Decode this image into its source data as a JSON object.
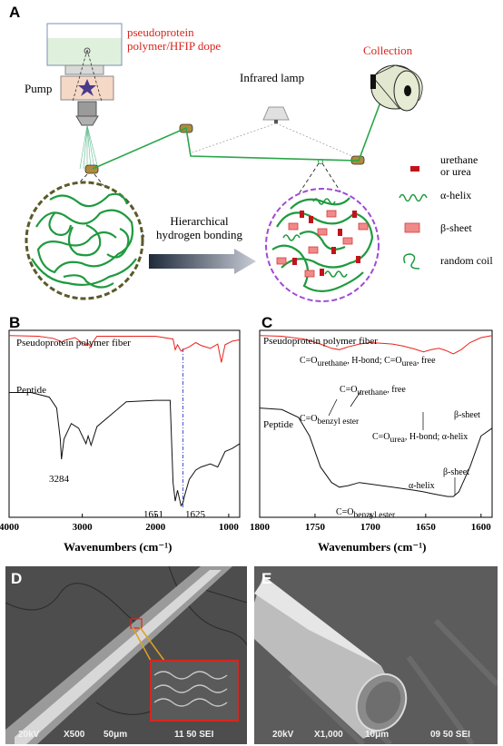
{
  "panels": {
    "A": "A",
    "B": "B",
    "C": "C",
    "D": "D",
    "E": "E"
  },
  "panel_a": {
    "dope_label": "pseudoprotein\npolymer/HFIP dope",
    "pump_label": "Pump",
    "lamp_label": "Infrared lamp",
    "collection_label": "Collection",
    "bonding_label": "Hierarchical\nhydrogen bonding",
    "legend": [
      {
        "label": "urethane\nor urea"
      },
      {
        "label": "α-helix"
      },
      {
        "label": "β-sheet"
      },
      {
        "label": "random coil"
      }
    ],
    "colors": {
      "fiber": "#2aa64a",
      "urethane": "#c0141b",
      "beta": "#e85a5a",
      "text_red": "#d7261e"
    }
  },
  "panel_b": {
    "xlabel": "Wavenumbers (cm⁻¹)",
    "ticks": [
      "4000",
      "3000",
      "2000",
      "1000"
    ],
    "fiber_label": "Pseudoprotein polymer fiber",
    "peptide_label": "Peptide",
    "annotations": [
      "3284",
      "1651",
      "1625"
    ]
  },
  "panel_c": {
    "xlabel": "Wavenumbers (cm⁻¹)",
    "ticks": [
      "1800",
      "1750",
      "1700",
      "1650",
      "1600"
    ],
    "fiber_label": "Pseudoprotein polymer fiber",
    "peptide_label": "Peptide",
    "ann_urethane_hbond": "C=O",
    "ann_urethane_hbond_sub": "urethane",
    "ann_urethane_hbond_mid": ", H-bond; C=O",
    "ann_urethane_hbond_sub2": "urea",
    "ann_urethane_hbond_end": ", free",
    "ann_urethane_free": "C=O",
    "ann_urethane_free_sub": "urethane",
    "ann_urethane_free_end": ", free",
    "ann_benzyl": "C=O",
    "ann_benzyl_sub": "benzyl ester",
    "ann_urea_hbond": "C=O",
    "ann_urea_hbond_sub": "urea",
    "ann_urea_hbond_end": ", H-bond;  α-helix",
    "ann_beta_top": "β-sheet",
    "ann_alpha": "α-helix",
    "ann_beta_bottom": "β-sheet",
    "ann_benzyl2": "C=O",
    "ann_benzyl2_sub": "benzyl ester"
  },
  "panel_d": {
    "kv": "20kV",
    "mag": "X500",
    "scale": "50μm",
    "code": "11 50 SEI"
  },
  "panel_e": {
    "kv": "20kV",
    "mag": "X1,000",
    "scale": "10μm",
    "code": "09 50 SEI"
  },
  "chart_data": [
    {
      "type": "line",
      "title": "",
      "xlabel": "Wavenumbers (cm⁻¹)",
      "ylabel": "",
      "xlim": [
        4000,
        850
      ],
      "series": [
        {
          "name": "Pseudoprotein polymer fiber",
          "x": [
            4000,
            3600,
            3400,
            3300,
            3284,
            3250,
            3100,
            2950,
            2930,
            2880,
            2860,
            2800,
            2000,
            1760,
            1730,
            1700,
            1651,
            1625,
            1540,
            1450,
            1380,
            1250,
            1150,
            1100,
            1050,
            950,
            850
          ],
          "y": [
            0.98,
            0.97,
            0.94,
            0.9,
            0.88,
            0.91,
            0.95,
            0.84,
            0.88,
            0.82,
            0.88,
            0.97,
            0.97,
            0.93,
            0.78,
            0.85,
            0.76,
            0.78,
            0.82,
            0.88,
            0.84,
            0.8,
            0.86,
            0.6,
            0.85,
            0.9,
            0.92
          ]
        },
        {
          "name": "Peptide",
          "x": [
            4000,
            3700,
            3450,
            3350,
            3300,
            3284,
            3250,
            3150,
            3050,
            2950,
            2920,
            2880,
            2800,
            2400,
            2000,
            1800,
            1760,
            1730,
            1700,
            1651,
            1625,
            1600,
            1540,
            1450,
            1380,
            1250,
            1150,
            1050,
            950,
            850
          ],
          "y": [
            0.78,
            0.78,
            0.75,
            0.68,
            0.48,
            0.35,
            0.48,
            0.58,
            0.55,
            0.45,
            0.5,
            0.44,
            0.56,
            0.72,
            0.73,
            0.73,
            0.2,
            0.08,
            0.15,
            0.05,
            0.07,
            0.12,
            0.22,
            0.28,
            0.3,
            0.32,
            0.3,
            0.4,
            0.42,
            0.45
          ]
        }
      ]
    },
    {
      "type": "line",
      "title": "",
      "xlabel": "Wavenumbers (cm⁻¹)",
      "ylabel": "",
      "xlim": [
        1800,
        1590
      ],
      "series": [
        {
          "name": "Pseudoprotein polymer fiber",
          "x": [
            1800,
            1780,
            1760,
            1745,
            1735,
            1728,
            1720,
            1710,
            1700,
            1690,
            1680,
            1670,
            1660,
            1652,
            1645,
            1638,
            1632,
            1625,
            1618,
            1610,
            1600,
            1590
          ],
          "y": [
            0.98,
            0.97,
            0.93,
            0.86,
            0.8,
            0.78,
            0.82,
            0.86,
            0.88,
            0.87,
            0.86,
            0.83,
            0.79,
            0.75,
            0.78,
            0.8,
            0.77,
            0.72,
            0.78,
            0.88,
            0.95,
            0.98
          ]
        },
        {
          "name": "Peptide",
          "x": [
            1800,
            1780,
            1765,
            1755,
            1745,
            1735,
            1728,
            1720,
            1710,
            1700,
            1690,
            1680,
            1670,
            1660,
            1652,
            1645,
            1638,
            1630,
            1625,
            1620,
            1610,
            1600,
            1590
          ],
          "y": [
            0.68,
            0.67,
            0.62,
            0.5,
            0.3,
            0.2,
            0.17,
            0.18,
            0.2,
            0.19,
            0.18,
            0.17,
            0.16,
            0.15,
            0.14,
            0.13,
            0.12,
            0.11,
            0.11,
            0.14,
            0.3,
            0.5,
            0.55
          ]
        }
      ]
    }
  ]
}
